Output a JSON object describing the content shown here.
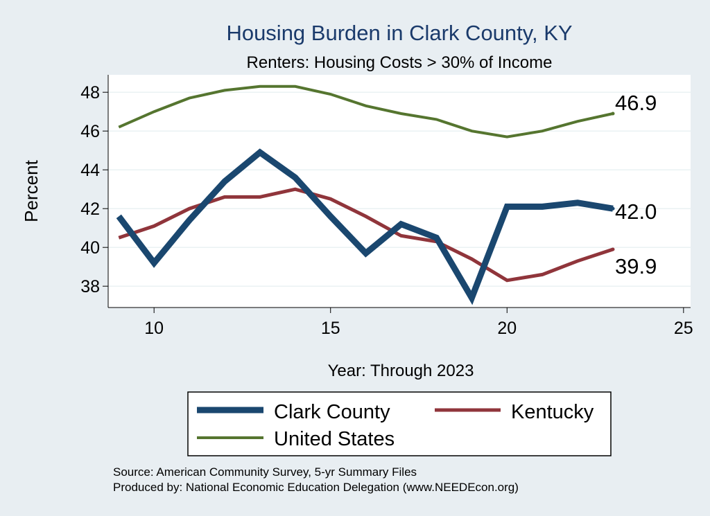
{
  "chart_data": {
    "type": "line",
    "title": "Housing Burden in Clark County, KY",
    "subtitle": "Renters: Housing Costs > 30% of Income",
    "xlabel": "Year: Through 2023",
    "ylabel": "Percent",
    "xlim": [
      8.7,
      25.2
    ],
    "ylim": [
      36.9,
      48.9
    ],
    "xticks": [
      10,
      15,
      20,
      25
    ],
    "yticks": [
      38,
      40,
      42,
      44,
      46,
      48
    ],
    "grid": true,
    "legend_position": "bottom",
    "series": [
      {
        "name": "Clark County",
        "color": "#1a476f",
        "x": [
          9,
          10,
          11,
          12,
          13,
          14,
          15,
          16,
          17,
          18,
          19,
          20,
          21,
          22,
          23
        ],
        "values": [
          41.6,
          39.2,
          41.4,
          43.4,
          44.9,
          43.6,
          41.6,
          39.7,
          41.2,
          40.5,
          37.4,
          42.1,
          42.1,
          42.3,
          42.0
        ],
        "end_label": "42.0"
      },
      {
        "name": "Kentucky",
        "color": "#90353b",
        "x": [
          9,
          10,
          11,
          12,
          13,
          14,
          15,
          16,
          17,
          18,
          19,
          20,
          21,
          22,
          23
        ],
        "values": [
          40.5,
          41.1,
          42.0,
          42.6,
          42.6,
          43.0,
          42.5,
          41.6,
          40.6,
          40.3,
          39.4,
          38.3,
          38.6,
          39.3,
          39.9
        ],
        "end_label": "39.9"
      },
      {
        "name": "United States",
        "color": "#55752f",
        "x": [
          9,
          10,
          11,
          12,
          13,
          14,
          15,
          16,
          17,
          18,
          19,
          20,
          21,
          22,
          23
        ],
        "values": [
          46.2,
          47.0,
          47.7,
          48.1,
          48.3,
          48.3,
          47.9,
          47.3,
          46.9,
          46.6,
          46.0,
          45.7,
          46.0,
          46.5,
          46.9
        ],
        "end_label": "46.9"
      }
    ]
  },
  "footer": {
    "source": "Source: American Community Survey, 5-yr Summary Files",
    "produced": "Produced by: National Economic Education Delegation (www.NEEDEcon.org)"
  }
}
